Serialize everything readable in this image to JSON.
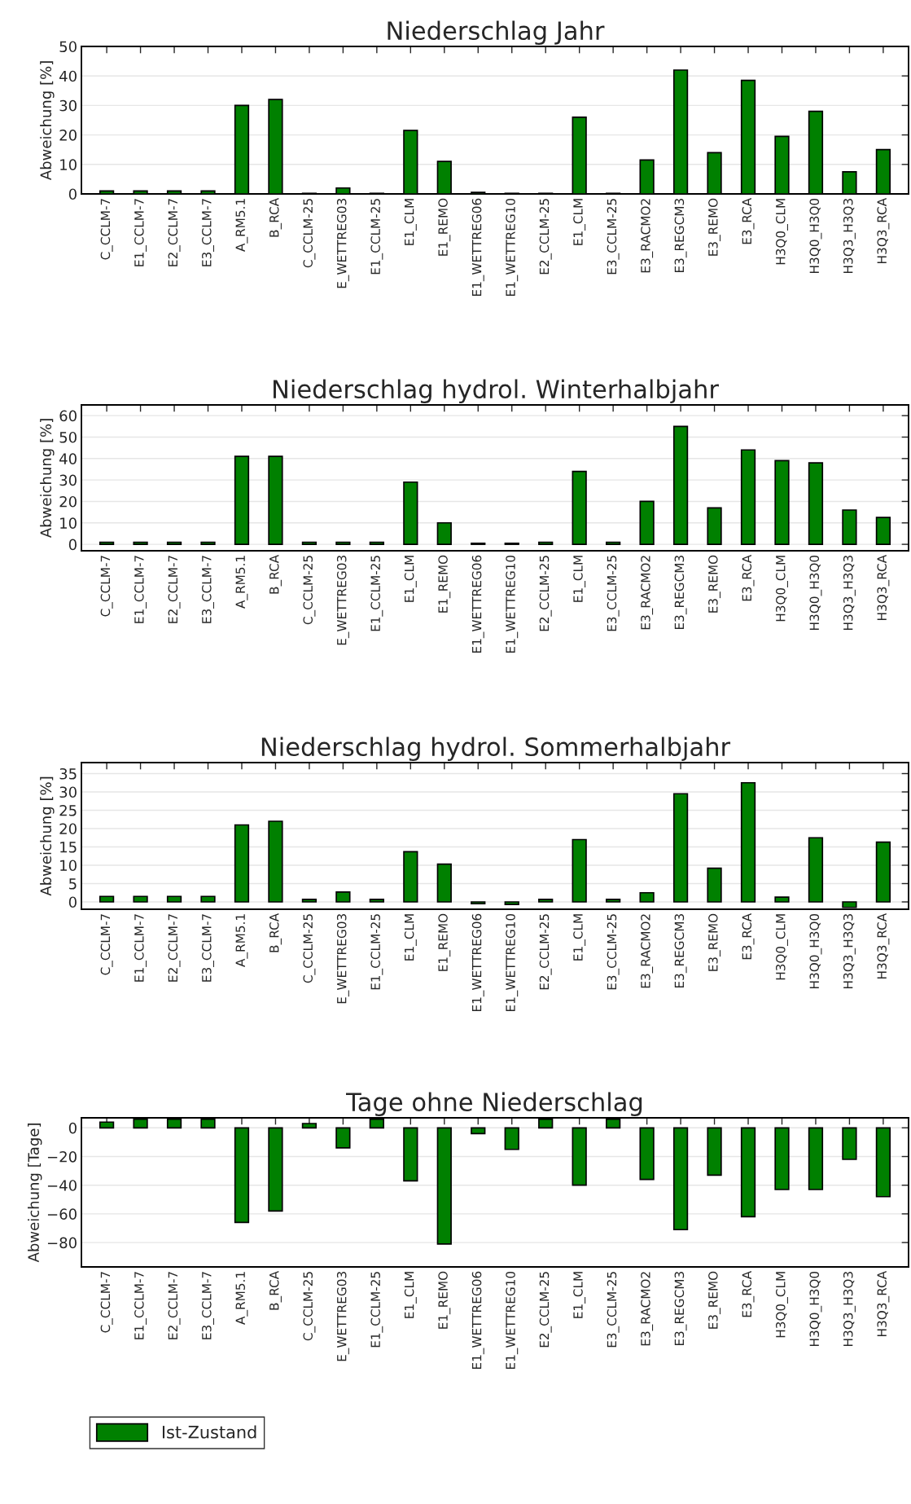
{
  "chart_data": [
    {
      "type": "bar",
      "title": "Niederschlag Jahr",
      "ylabel": "Abweichung [%]",
      "categories": [
        "C_CCLM-7",
        "E1_CCLM-7",
        "E2_CCLM-7",
        "E3_CCLM-7",
        "A_RM5.1",
        "B_RCA",
        "C_CCLM-25",
        "E_WETTREG03",
        "E1_CCLM-25",
        "E1_CLM",
        "E1_REMO",
        "E1_WETTREG06",
        "E1_WETTREG10",
        "E2_CCLM-25",
        "E1_CLM",
        "E3_CCLM-25",
        "E3_RACMO2",
        "E3_REGCM3",
        "E3_REMO",
        "E3_RCA",
        "H3Q0_CLM",
        "H3Q0_H3Q0",
        "H3Q3_H3Q3",
        "H3Q3_RCA"
      ],
      "series": [
        {
          "color": "#008000",
          "values": [
            1,
            1,
            1,
            1,
            30,
            32,
            0.2,
            2,
            0.2,
            21.5,
            11,
            0.5,
            0.2,
            0.2,
            26,
            0.2,
            11.5,
            42,
            14,
            38.5,
            19.5,
            28,
            7.5,
            15
          ]
        }
      ],
      "ylim": [
        0,
        50
      ],
      "yticks": [
        0,
        10,
        20,
        30,
        40,
        50
      ],
      "grid": "y",
      "legend": false
    },
    {
      "type": "bar",
      "title": "Niederschlag hydrol. Winterhalbjahr",
      "ylabel": "Abweichung [%]",
      "categories": [
        "C_CCLM-7",
        "E1_CCLM-7",
        "E2_CCLM-7",
        "E3_CCLM-7",
        "A_RM5.1",
        "B_RCA",
        "C_CCLM-25",
        "E_WETTREG03",
        "E1_CCLM-25",
        "E1_CLM",
        "E1_REMO",
        "E1_WETTREG06",
        "E1_WETTREG10",
        "E2_CCLM-25",
        "E1_CLM",
        "E3_CCLM-25",
        "E3_RACMO2",
        "E3_REGCM3",
        "E3_REMO",
        "E3_RCA",
        "H3Q0_CLM",
        "H3Q0_H3Q0",
        "H3Q3_H3Q3",
        "H3Q3_RCA"
      ],
      "series": [
        {
          "color": "#008000",
          "values": [
            1,
            1,
            1,
            1,
            41,
            41,
            1,
            1,
            1,
            29,
            10,
            0.5,
            0.5,
            1,
            34,
            1,
            20,
            55,
            17,
            44,
            39,
            38,
            16,
            12.5
          ]
        }
      ],
      "ylim": [
        -3,
        65
      ],
      "yticks": [
        0,
        10,
        20,
        30,
        40,
        50,
        60
      ],
      "grid": "y",
      "legend": false
    },
    {
      "type": "bar",
      "title": "Niederschlag hydrol. Sommerhalbjahr",
      "ylabel": "Abweichung [%]",
      "categories": [
        "C_CCLM-7",
        "E1_CCLM-7",
        "E2_CCLM-7",
        "E3_CCLM-7",
        "A_RM5.1",
        "B_RCA",
        "C_CCLM-25",
        "E_WETTREG03",
        "E1_CCLM-25",
        "E1_CLM",
        "E1_REMO",
        "E1_WETTREG06",
        "E1_WETTREG10",
        "E2_CCLM-25",
        "E1_CLM",
        "E3_CCLM-25",
        "E3_RACMO2",
        "E3_REGCM3",
        "E3_REMO",
        "E3_RCA",
        "H3Q0_CLM",
        "H3Q0_H3Q0",
        "H3Q3_H3Q3",
        "H3Q3_RCA"
      ],
      "series": [
        {
          "color": "#008000",
          "values": [
            1.5,
            1.5,
            1.5,
            1.5,
            21,
            22,
            0.7,
            2.7,
            0.7,
            13.7,
            10.3,
            -0.5,
            -0.7,
            0.7,
            17,
            0.7,
            2.5,
            29.5,
            9.2,
            32.5,
            1.3,
            17.5,
            -1.5,
            16.3
          ]
        }
      ],
      "ylim": [
        -2,
        38
      ],
      "yticks": [
        0,
        5,
        10,
        15,
        20,
        25,
        30,
        35
      ],
      "grid": "y",
      "legend": false
    },
    {
      "type": "bar",
      "title": "Tage ohne Niederschlag",
      "ylabel": "Abweichung [Tage]",
      "categories": [
        "C_CCLM-7",
        "E1_CCLM-7",
        "E2_CCLM-7",
        "E3_CCLM-7",
        "A_RM5.1",
        "B_RCA",
        "C_CCLM-25",
        "E_WETTREG03",
        "E1_CCLM-25",
        "E1_CLM",
        "E1_REMO",
        "E1_WETTREG06",
        "E1_WETTREG10",
        "E2_CCLM-25",
        "E1_CLM",
        "E3_CCLM-25",
        "E3_RACMO2",
        "E3_REGCM3",
        "E3_REMO",
        "E3_RCA",
        "H3Q0_CLM",
        "H3Q0_H3Q0",
        "H3Q3_H3Q3",
        "H3Q3_RCA"
      ],
      "series": [
        {
          "name": "Ist-Zustand",
          "color": "#008000",
          "values": [
            4,
            6,
            6,
            6,
            -66,
            -58,
            3,
            -14,
            6,
            -37,
            -81,
            -4,
            -15,
            6,
            -40,
            6,
            -36,
            -71,
            -33,
            -62,
            -43,
            -43,
            -22,
            -48
          ]
        }
      ],
      "ylim": [
        -97,
        7
      ],
      "yticks": [
        {
          "value": -80,
          "label": "−80"
        },
        {
          "value": -60,
          "label": "−60"
        },
        {
          "value": -40,
          "label": "−40"
        },
        {
          "value": -20,
          "label": "−20"
        },
        0
      ],
      "grid": "y",
      "legend": "bottom left"
    }
  ]
}
